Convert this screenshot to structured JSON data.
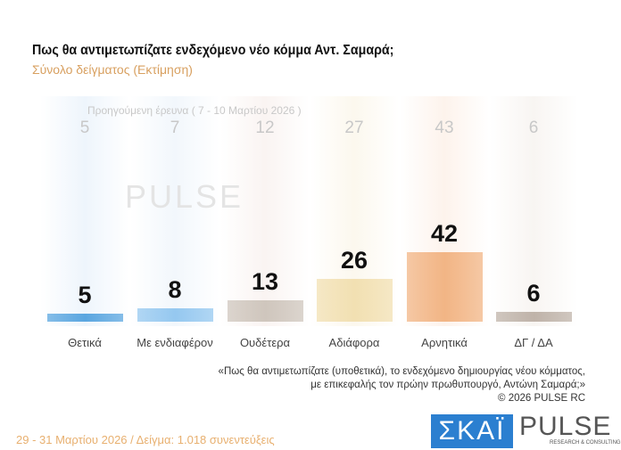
{
  "title": "Πως θα αντιμετωπίζατε ενδεχόμενο νέο κόμμα Αντ. Σαμαρά;",
  "subtitle": "Σύνολο δείγματος  (Εκτίμηση)",
  "chart_data": {
    "type": "bar",
    "categories": [
      "Θετικά",
      "Με ενδιαφέρον",
      "Ουδέτερα",
      "Αδιάφορα",
      "Αρνητικά",
      "ΔΓ / ΔΑ"
    ],
    "series": [
      {
        "name": "Προηγούμενη έρευνα ( 7 - 10 Μαρτίου 2026 )",
        "values": [
          5,
          7,
          12,
          27,
          43,
          6
        ]
      },
      {
        "values": [
          5,
          8,
          13,
          26,
          42,
          6
        ]
      }
    ],
    "colors": [
      "#5aa6e0",
      "#95c8f0",
      "#cfc6bd",
      "#f2e0b2",
      "#f2b585",
      "#bfb3a9"
    ],
    "grid": false
  },
  "prev_label": "Προηγούμενη έρευνα ( 7 - 10 Μαρτίου 2026 )",
  "watermark": "PULSE",
  "note": [
    "«Πως θα αντιμετωπίζατε (υποθετικά), το ενδεχόμενο δημιουργίας νέου κόμματος,",
    "με επικεφαλής τον πρώην πρωθυπουργό, Αντώνη Σαμαρά;»",
    "©  2026  PULSE RC"
  ],
  "footer": "29 - 31  Μαρτίου 2026  /  Δείγμα:  1.018 συνεντεύξεις",
  "logos": {
    "skai": "ΣΚΑΪ",
    "pulse": "PULSE",
    "pulse_sub": "RESEARCH & CONSULTING"
  }
}
